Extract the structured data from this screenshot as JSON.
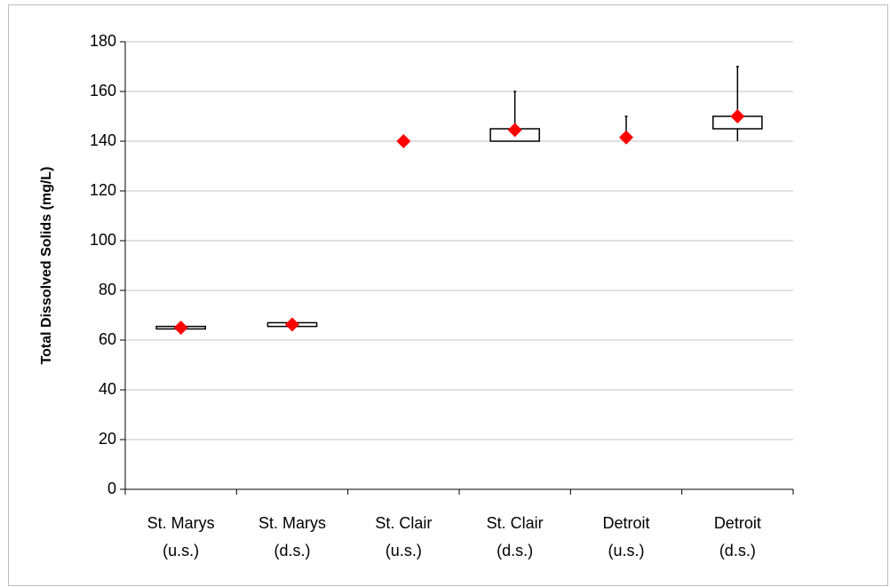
{
  "chart_data": {
    "type": "box",
    "y_label": "Total Dissolved Solids (mg/L)",
    "categories": [
      [
        "St. Marys",
        "(u.s.)"
      ],
      [
        "St. Marys",
        "(d.s.)"
      ],
      [
        "St. Clair",
        "(u.s.)"
      ],
      [
        "St. Clair",
        "(d.s.)"
      ],
      [
        "Detroit",
        "(u.s.)"
      ],
      [
        "Detroit",
        "(d.s.)"
      ]
    ],
    "min": [
      64.5,
      65.5,
      140,
      140,
      140,
      140
    ],
    "q1": [
      64.5,
      65.5,
      140,
      140,
      140,
      145
    ],
    "q3": [
      65.5,
      67,
      140,
      145,
      140,
      150
    ],
    "max": [
      65.5,
      67,
      140,
      160,
      150,
      170
    ],
    "mean": [
      65,
      66.3,
      140,
      144.5,
      141.5,
      150
    ],
    "box_color": "#ffffff",
    "mean_color": "#ff0000",
    "ylim": [
      0,
      180
    ],
    "yticks": [
      0,
      20,
      40,
      60,
      80,
      100,
      120,
      140,
      160,
      180
    ],
    "grid": true
  }
}
